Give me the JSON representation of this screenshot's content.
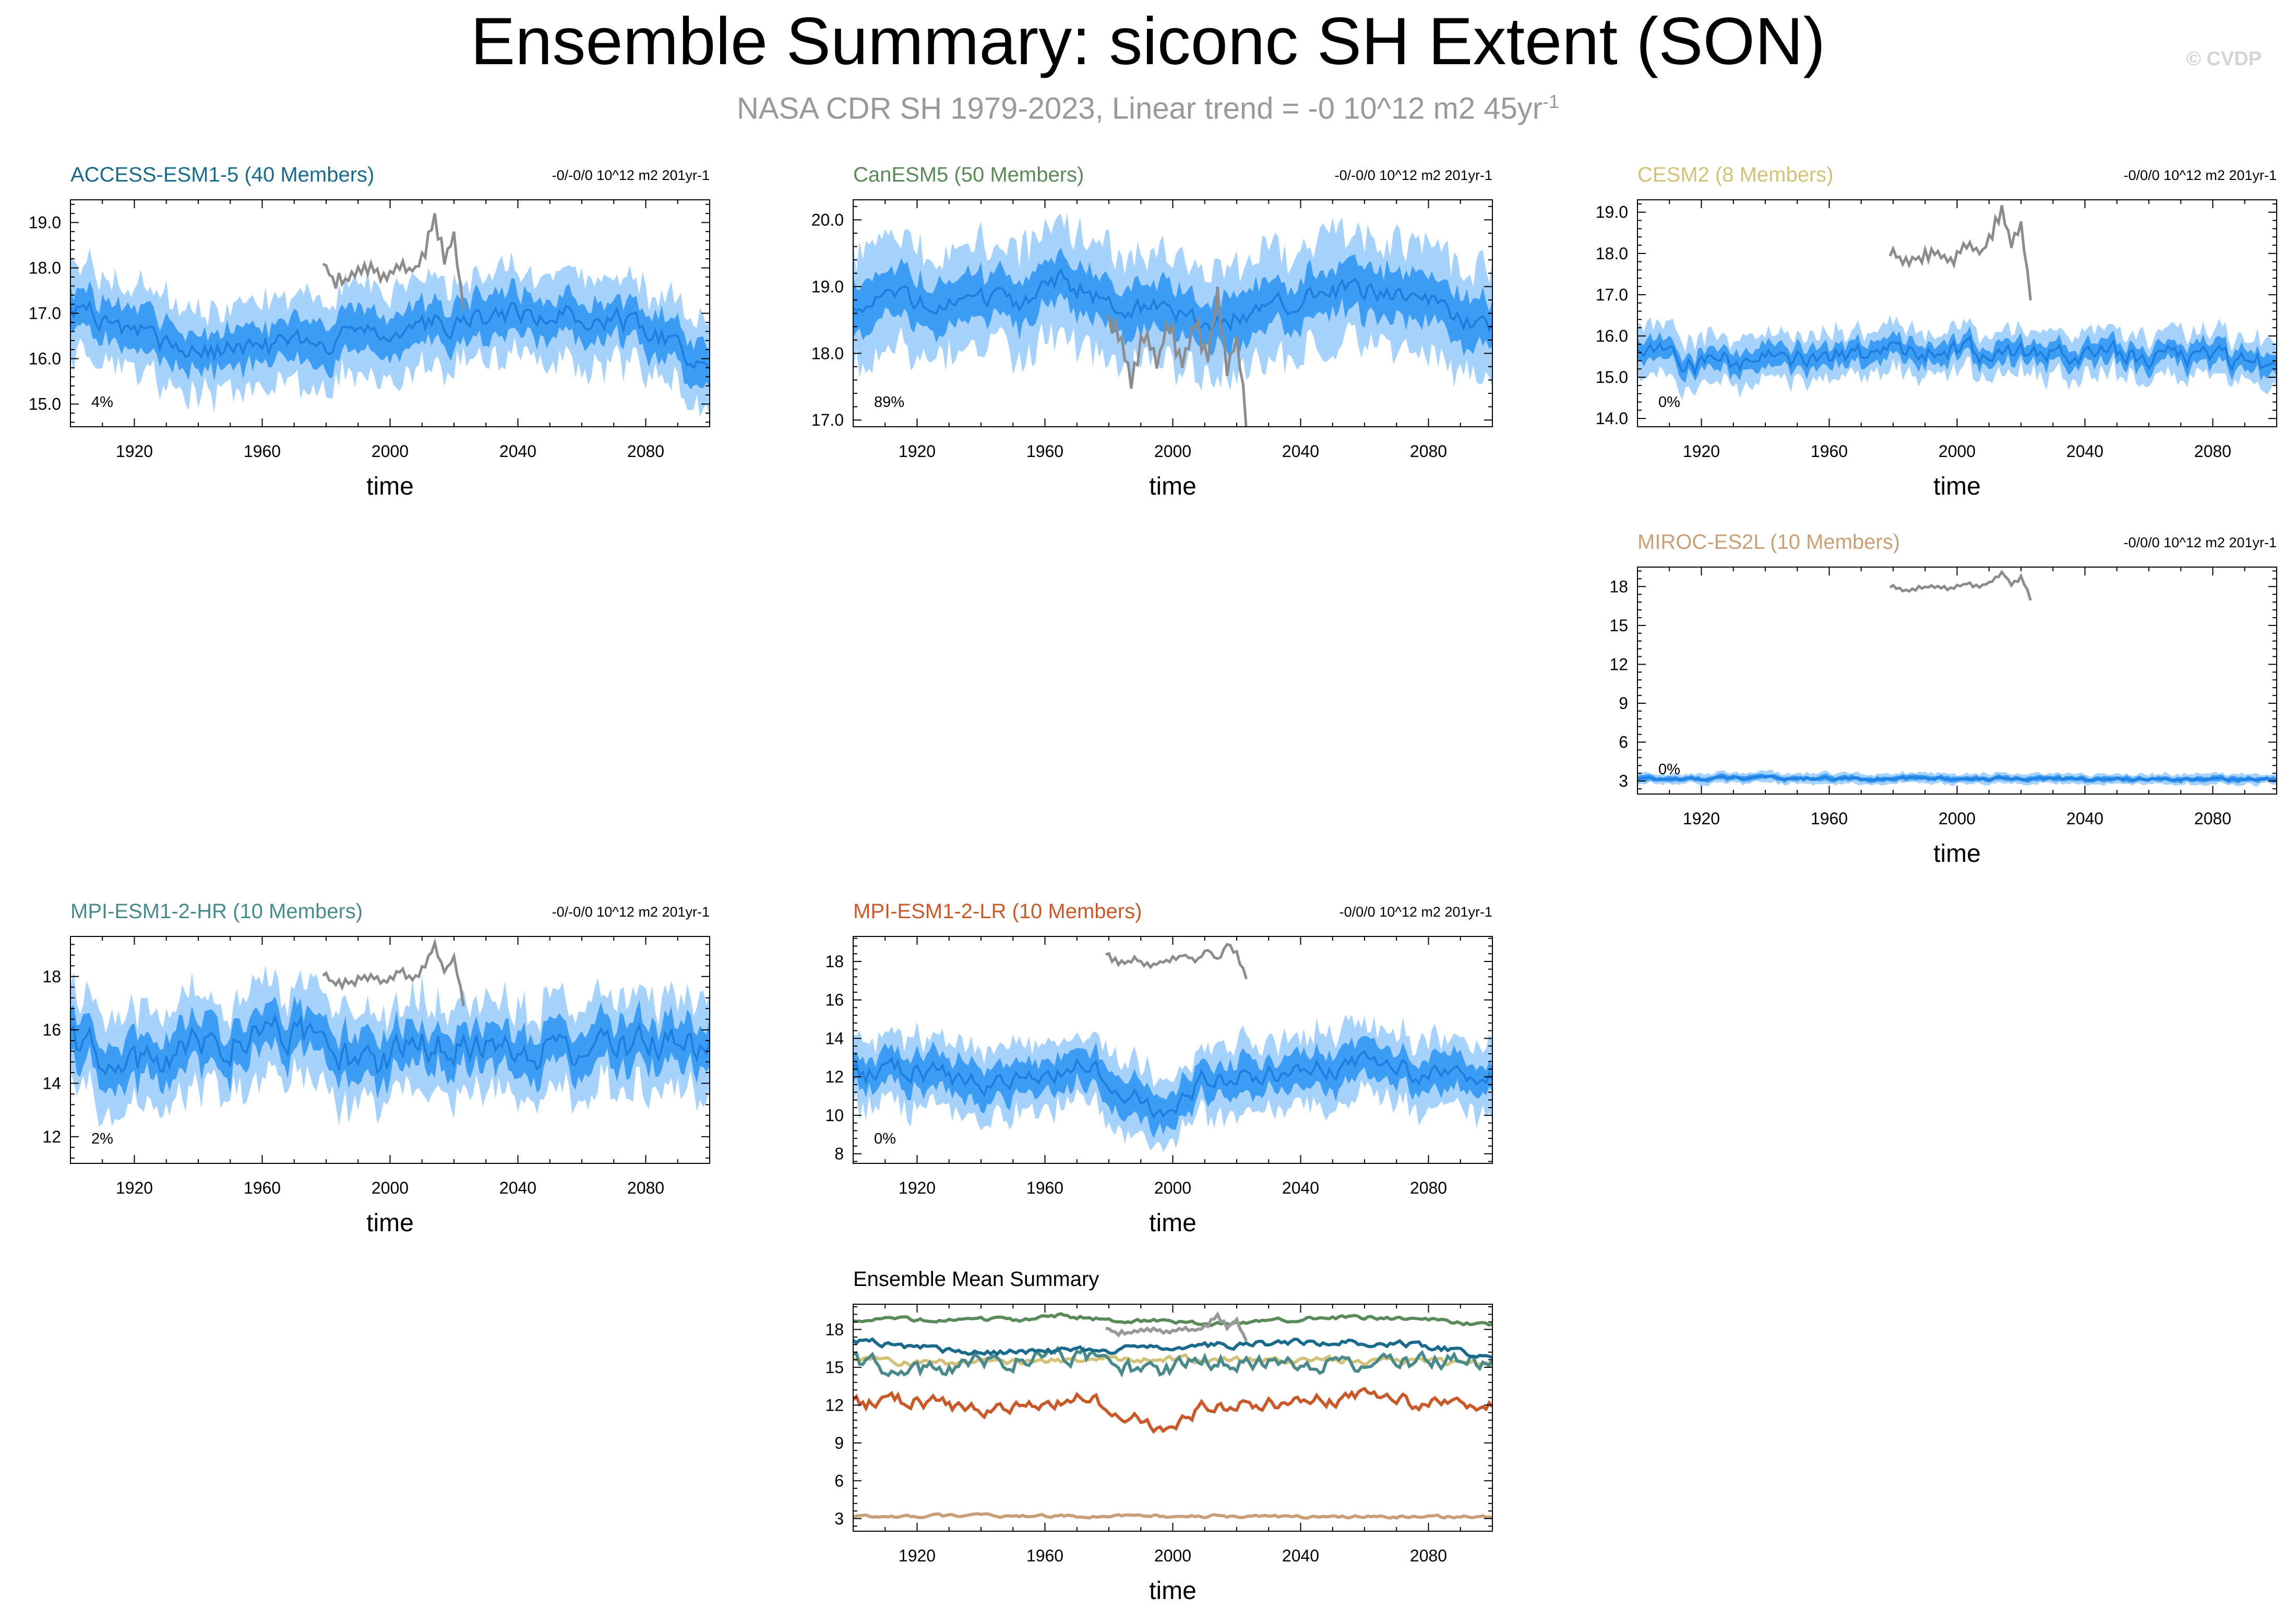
{
  "title": "Ensemble Summary: siconc SH Extent (SON)",
  "subtitle": "NASA CDR SH 1979-2023, Linear trend = -0 10^12 m2 45yr",
  "subtitle_sup": "-1",
  "watermark": "© CVDP",
  "chart_data": [
    {
      "type": "line",
      "key": "access",
      "title": "ACCESS-ESM1-5 (40 Members)",
      "title_color": "#1a6a8c",
      "trend_label": "-0/-0/0 10^12 m2 201yr-1",
      "percent_label": "4%",
      "xlabel": "time",
      "xlim": [
        1900,
        2100
      ],
      "xticks": [
        1920,
        1960,
        2000,
        2040,
        2080
      ],
      "ylim": [
        14.5,
        19.5
      ],
      "yticks": [
        15.0,
        16.0,
        17.0,
        18.0,
        19.0
      ],
      "ytick_labels": [
        "15.0",
        "16.0",
        "17.0",
        "18.0",
        "19.0"
      ],
      "mean_anchors": [
        [
          1900,
          17.2
        ],
        [
          1915,
          16.7
        ],
        [
          1940,
          16.1
        ],
        [
          1960,
          16.2
        ],
        [
          1990,
          16.5
        ],
        [
          2020,
          16.8
        ],
        [
          2040,
          17.0
        ],
        [
          2070,
          16.9
        ],
        [
          2085,
          16.5
        ],
        [
          2100,
          15.6
        ]
      ],
      "noise": 0.22,
      "inner_spread": 0.45,
      "outer_spread": 0.95,
      "obs_anchors": [
        [
          1979,
          18.1
        ],
        [
          1983,
          17.7
        ],
        [
          1988,
          17.8
        ],
        [
          1993,
          18.0
        ],
        [
          1998,
          17.8
        ],
        [
          2003,
          18.1
        ],
        [
          2008,
          17.9
        ],
        [
          2011,
          18.4
        ],
        [
          2014,
          19.1
        ],
        [
          2017,
          18.2
        ],
        [
          2020,
          18.7
        ],
        [
          2023,
          17.1
        ]
      ]
    },
    {
      "type": "line",
      "key": "canesm",
      "title": "CanESM5 (50 Members)",
      "title_color": "#5a8a5a",
      "trend_label": "-0/-0/0 10^12 m2 201yr-1",
      "percent_label": "89%",
      "xlabel": "time",
      "xlim": [
        1900,
        2100
      ],
      "xticks": [
        1920,
        1960,
        2000,
        2040,
        2080
      ],
      "ylim": [
        16.9,
        20.3
      ],
      "yticks": [
        17.0,
        18.0,
        19.0,
        20.0
      ],
      "ytick_labels": [
        "17.0",
        "18.0",
        "19.0",
        "20.0"
      ],
      "mean_anchors": [
        [
          1900,
          18.8
        ],
        [
          1930,
          18.7
        ],
        [
          1955,
          18.8
        ],
        [
          1965,
          19.1
        ],
        [
          1980,
          18.8
        ],
        [
          2000,
          18.6
        ],
        [
          2010,
          18.4
        ],
        [
          2030,
          18.7
        ],
        [
          2055,
          19.0
        ],
        [
          2080,
          18.8
        ],
        [
          2100,
          18.3
        ]
      ],
      "noise": 0.14,
      "inner_spread": 0.35,
      "outer_spread": 0.8,
      "obs_anchors": [
        [
          1979,
          18.6
        ],
        [
          1984,
          18.2
        ],
        [
          1987,
          17.6
        ],
        [
          1991,
          18.3
        ],
        [
          1995,
          17.9
        ],
        [
          1999,
          18.4
        ],
        [
          2003,
          17.8
        ],
        [
          2007,
          18.5
        ],
        [
          2011,
          17.9
        ],
        [
          2014,
          18.9
        ],
        [
          2017,
          17.7
        ],
        [
          2020,
          18.2
        ],
        [
          2023,
          17.0
        ]
      ]
    },
    {
      "type": "line",
      "key": "cesm",
      "title": "CESM2 (8 Members)",
      "title_color": "#d2c278",
      "trend_label": "-0/0/0 10^12 m2 201yr-1",
      "percent_label": "0%",
      "xlabel": "time",
      "xlim": [
        1900,
        2100
      ],
      "xticks": [
        1920,
        1960,
        2000,
        2040,
        2080
      ],
      "ylim": [
        13.8,
        19.3
      ],
      "yticks": [
        14.0,
        15.0,
        16.0,
        17.0,
        18.0,
        19.0
      ],
      "ytick_labels": [
        "14.0",
        "15.0",
        "16.0",
        "17.0",
        "18.0",
        "19.0"
      ],
      "mean_anchors": [
        [
          1900,
          15.7
        ],
        [
          1920,
          15.3
        ],
        [
          1960,
          15.5
        ],
        [
          2000,
          15.6
        ],
        [
          2040,
          15.6
        ],
        [
          2080,
          15.4
        ],
        [
          2100,
          15.3
        ]
      ],
      "noise": 0.22,
      "inner_spread": 0.25,
      "outer_spread": 0.55,
      "obs_anchors": [
        [
          1979,
          18.1
        ],
        [
          1983,
          17.8
        ],
        [
          1988,
          17.9
        ],
        [
          1993,
          18.0
        ],
        [
          1998,
          17.8
        ],
        [
          2003,
          18.2
        ],
        [
          2008,
          18.0
        ],
        [
          2011,
          18.5
        ],
        [
          2014,
          19.1
        ],
        [
          2017,
          18.2
        ],
        [
          2020,
          18.7
        ],
        [
          2023,
          17.0
        ]
      ]
    },
    {
      "type": "line",
      "key": "miroc",
      "title": "MIROC-ES2L (10 Members)",
      "title_color": "#c8a078",
      "trend_label": "-0/0/0 10^12 m2 201yr-1",
      "percent_label": "0%",
      "xlabel": "time",
      "xlim": [
        1900,
        2100
      ],
      "xticks": [
        1920,
        1960,
        2000,
        2040,
        2080
      ],
      "ylim": [
        2,
        19.5
      ],
      "yticks": [
        3,
        6,
        9,
        12,
        15,
        18
      ],
      "ytick_labels": [
        "3",
        "6",
        "9",
        "12",
        "15",
        "18"
      ],
      "mean_anchors": [
        [
          1900,
          3.2
        ],
        [
          2000,
          3.2
        ],
        [
          2100,
          3.1
        ]
      ],
      "noise": 0.1,
      "inner_spread": 0.2,
      "outer_spread": 0.4,
      "obs_anchors": [
        [
          1979,
          18.1
        ],
        [
          1983,
          17.7
        ],
        [
          1988,
          17.9
        ],
        [
          1993,
          18.0
        ],
        [
          1998,
          17.8
        ],
        [
          2003,
          18.2
        ],
        [
          2008,
          18.0
        ],
        [
          2011,
          18.5
        ],
        [
          2014,
          19.1
        ],
        [
          2017,
          18.2
        ],
        [
          2020,
          18.7
        ],
        [
          2023,
          17.1
        ]
      ]
    },
    {
      "type": "line",
      "key": "mpihr",
      "title": "MPI-ESM1-2-HR (10 Members)",
      "title_color": "#4a8a8a",
      "trend_label": "-0/-0/0 10^12 m2 201yr-1",
      "percent_label": "2%",
      "xlabel": "time",
      "xlim": [
        1900,
        2100
      ],
      "xticks": [
        1920,
        1960,
        2000,
        2040,
        2080
      ],
      "ylim": [
        11.0,
        19.5
      ],
      "yticks": [
        12,
        14,
        16,
        18
      ],
      "ytick_labels": [
        "12",
        "14",
        "16",
        "18"
      ],
      "mean_anchors": [
        [
          1900,
          15.5
        ],
        [
          1920,
          14.5
        ],
        [
          1940,
          15.5
        ],
        [
          1960,
          15.8
        ],
        [
          1975,
          15.8
        ],
        [
          1990,
          14.5
        ],
        [
          2010,
          15.3
        ],
        [
          2030,
          15.5
        ],
        [
          2060,
          15.2
        ],
        [
          2100,
          15.5
        ]
      ],
      "noise": 0.55,
      "inner_spread": 0.8,
      "outer_spread": 1.7,
      "obs_anchors": [
        [
          1979,
          18.1
        ],
        [
          1983,
          17.7
        ],
        [
          1988,
          17.8
        ],
        [
          1993,
          18.0
        ],
        [
          1998,
          17.8
        ],
        [
          2003,
          18.2
        ],
        [
          2008,
          17.9
        ],
        [
          2011,
          18.5
        ],
        [
          2014,
          19.1
        ],
        [
          2017,
          18.2
        ],
        [
          2020,
          18.7
        ],
        [
          2023,
          17.0
        ]
      ]
    },
    {
      "type": "line",
      "key": "mpilr",
      "title": "MPI-ESM1-2-LR (10 Members)",
      "title_color": "#c85a2a",
      "trend_label": "-0/0/0 10^12 m2 201yr-1",
      "percent_label": "0%",
      "xlabel": "time",
      "xlim": [
        1900,
        2100
      ],
      "xticks": [
        1920,
        1960,
        2000,
        2040,
        2080
      ],
      "ylim": [
        7.5,
        19.3
      ],
      "yticks": [
        8,
        10,
        12,
        14,
        16,
        18
      ],
      "ytick_labels": [
        "8",
        "10",
        "12",
        "14",
        "16",
        "18"
      ],
      "mean_anchors": [
        [
          1900,
          12.0
        ],
        [
          1920,
          12.4
        ],
        [
          1940,
          11.5
        ],
        [
          1960,
          12.3
        ],
        [
          1975,
          12.5
        ],
        [
          1990,
          11.0
        ],
        [
          1998,
          10.1
        ],
        [
          2010,
          12.0
        ],
        [
          2040,
          12.2
        ],
        [
          2060,
          12.8
        ],
        [
          2080,
          12.0
        ],
        [
          2100,
          12.2
        ]
      ],
      "noise": 0.45,
      "inner_spread": 0.9,
      "outer_spread": 1.8,
      "obs_anchors": [
        [
          1979,
          18.4
        ],
        [
          1983,
          17.9
        ],
        [
          1988,
          18.1
        ],
        [
          1993,
          17.8
        ],
        [
          1998,
          18.0
        ],
        [
          2003,
          18.3
        ],
        [
          2008,
          18.1
        ],
        [
          2011,
          18.6
        ],
        [
          2014,
          18.1
        ],
        [
          2017,
          18.9
        ],
        [
          2020,
          18.4
        ],
        [
          2023,
          17.1
        ]
      ]
    },
    {
      "type": "line",
      "key": "summary",
      "title": "Ensemble Mean Summary",
      "title_color": "#000000",
      "xlabel": "time",
      "xlim": [
        1900,
        2100
      ],
      "xticks": [
        1920,
        1960,
        2000,
        2040,
        2080
      ],
      "ylim": [
        2,
        20
      ],
      "yticks": [
        3,
        6,
        9,
        12,
        15,
        18
      ],
      "ytick_labels": [
        "3",
        "6",
        "9",
        "12",
        "15",
        "18"
      ],
      "series": [
        {
          "name": "ACCESS-ESM1-5",
          "color": "#1a6a8c"
        },
        {
          "name": "CanESM5",
          "color": "#5a8a5a"
        },
        {
          "name": "CESM2",
          "color": "#d2c278"
        },
        {
          "name": "MIROC-ES2L",
          "color": "#c8a078"
        },
        {
          "name": "MPI-ESM1-2-HR",
          "color": "#4a8a8a"
        },
        {
          "name": "MPI-ESM1-2-LR",
          "color": "#c85a2a"
        },
        {
          "name": "NASA CDR",
          "color": "#999999"
        }
      ]
    }
  ]
}
